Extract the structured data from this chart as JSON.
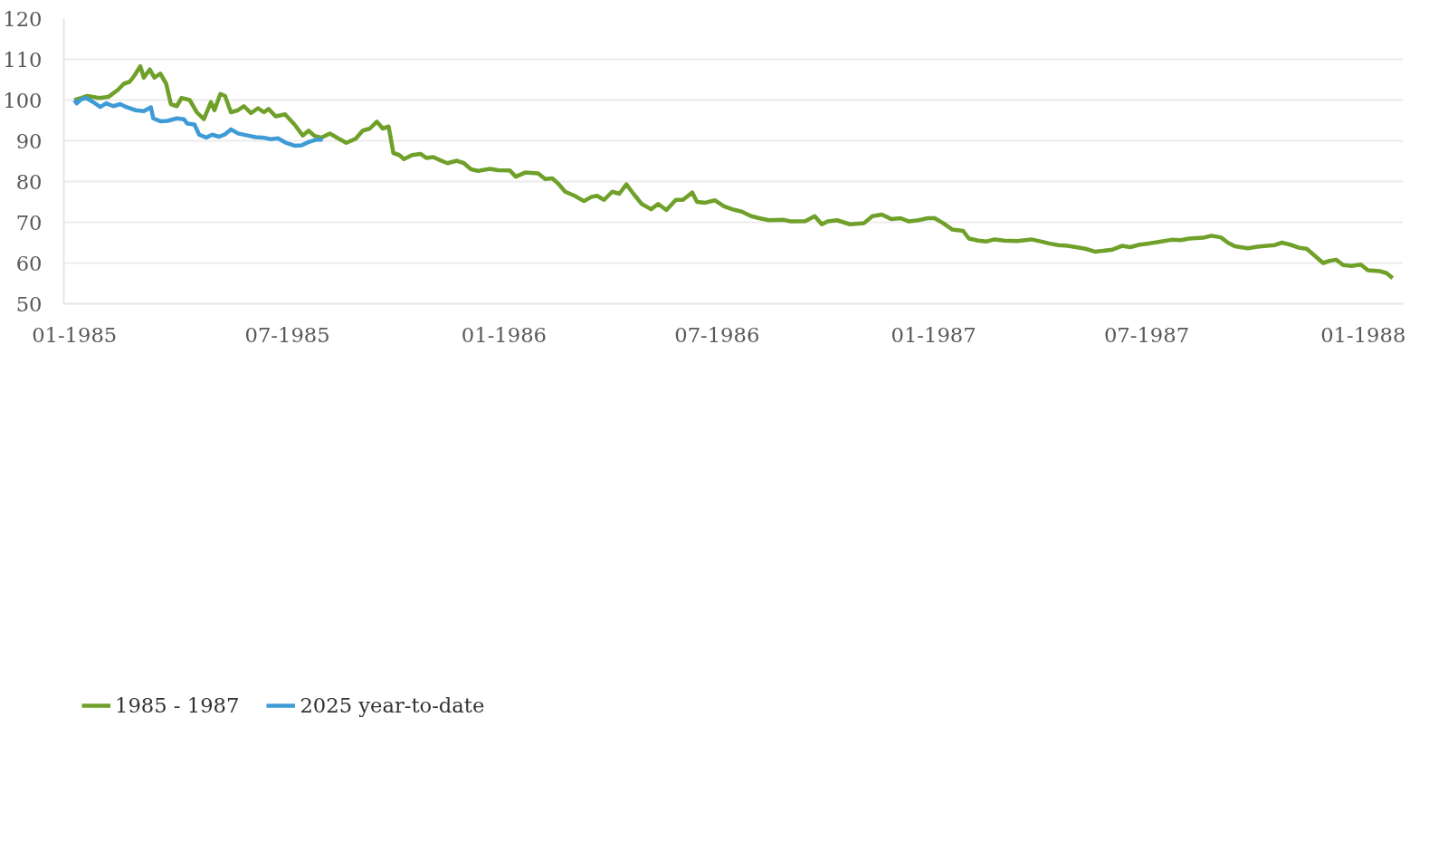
{
  "chart_data": {
    "type": "line",
    "xlim": [
      "1984-12-23",
      "1988-02-04"
    ],
    "ylim": [
      50,
      120
    ],
    "xticks": [
      {
        "value": "1985-01-01",
        "label": "01-1985"
      },
      {
        "value": "1985-07-01",
        "label": "07-1985"
      },
      {
        "value": "1986-01-01",
        "label": "01-1986"
      },
      {
        "value": "1986-07-01",
        "label": "07-1986"
      },
      {
        "value": "1987-01-01",
        "label": "01-1987"
      },
      {
        "value": "1987-07-01",
        "label": "07-1987"
      },
      {
        "value": "1988-01-01",
        "label": "01-1988"
      }
    ],
    "yticks": [
      50,
      60,
      70,
      80,
      90,
      100,
      110,
      120
    ],
    "grid": "y",
    "legend": "bottom left",
    "line_style": "solid",
    "marker": "none",
    "series": [
      {
        "name": "1985 - 1987",
        "color": "#6fa12a",
        "x": [
          "1985-01-01",
          "1985-01-07",
          "1985-01-12",
          "1985-01-22",
          "1985-01-30",
          "1985-02-07",
          "1985-02-12",
          "1985-02-17",
          "1985-02-21",
          "1985-02-26",
          "1985-03-01",
          "1985-03-06",
          "1985-03-10",
          "1985-03-15",
          "1985-03-20",
          "1985-03-24",
          "1985-03-29",
          "1985-04-02",
          "1985-04-09",
          "1985-04-15",
          "1985-04-21",
          "1985-04-27",
          "1985-04-30",
          "1985-05-05",
          "1985-05-09",
          "1985-05-14",
          "1985-05-20",
          "1985-05-25",
          "1985-05-31",
          "1985-06-06",
          "1985-06-11",
          "1985-06-15",
          "1985-06-21",
          "1985-06-29",
          "1985-07-07",
          "1985-07-14",
          "1985-07-19",
          "1985-07-24",
          "1985-07-30",
          "1985-08-06",
          "1985-08-13",
          "1985-08-20",
          "1985-08-28",
          "1985-09-03",
          "1985-09-09",
          "1985-09-15",
          "1985-09-20",
          "1985-09-25",
          "1985-09-29",
          "1985-10-04",
          "1985-10-08",
          "1985-10-15",
          "1985-10-22",
          "1985-10-27",
          "1985-11-02",
          "1985-11-08",
          "1985-11-14",
          "1985-11-22",
          "1985-11-28",
          "1985-12-04",
          "1985-12-10",
          "1985-12-20",
          "1985-12-27",
          "1986-01-06",
          "1986-01-11",
          "1986-01-19",
          "1986-01-30",
          "1986-02-05",
          "1986-02-11",
          "1986-02-16",
          "1986-02-22",
          "1986-03-02",
          "1986-03-10",
          "1986-03-16",
          "1986-03-21",
          "1986-03-27",
          "1986-04-03",
          "1986-04-09",
          "1986-04-15",
          "1986-04-21",
          "1986-04-28",
          "1986-05-06",
          "1986-05-12",
          "1986-05-19",
          "1986-05-27",
          "1986-06-02",
          "1986-06-10",
          "1986-06-14",
          "1986-06-21",
          "1986-06-29",
          "1986-07-07",
          "1986-07-14",
          "1986-07-22",
          "1986-07-30",
          "1986-08-06",
          "1986-08-14",
          "1986-08-26",
          "1986-09-02",
          "1986-09-14",
          "1986-09-22",
          "1986-09-28",
          "1986-10-03",
          "1986-10-11",
          "1986-10-22",
          "1986-11-03",
          "1986-11-10",
          "1986-11-18",
          "1986-11-26",
          "1986-12-04",
          "1986-12-11",
          "1986-12-19",
          "1986-12-27",
          "1987-01-02",
          "1987-01-09",
          "1987-01-17",
          "1987-01-26",
          "1987-01-31",
          "1987-02-08",
          "1987-02-15",
          "1987-02-22",
          "1987-03-02",
          "1987-03-13",
          "1987-03-25",
          "1987-04-02",
          "1987-04-09",
          "1987-04-17",
          "1987-04-25",
          "1987-05-02",
          "1987-05-10",
          "1987-05-18",
          "1987-05-25",
          "1987-06-02",
          "1987-06-10",
          "1987-06-17",
          "1987-06-25",
          "1987-07-03",
          "1987-07-10",
          "1987-07-22",
          "1987-07-30",
          "1987-08-06",
          "1987-08-18",
          "1987-08-25",
          "1987-09-02",
          "1987-09-08",
          "1987-09-14",
          "1987-09-25",
          "1987-10-03",
          "1987-10-11",
          "1987-10-18",
          "1987-10-24",
          "1987-10-31",
          "1987-11-08",
          "1987-11-14",
          "1987-11-22",
          "1987-11-28",
          "1987-12-03",
          "1987-12-09",
          "1987-12-15",
          "1987-12-22",
          "1987-12-30",
          "1988-01-05",
          "1988-01-15",
          "1988-01-21",
          "1988-01-26"
        ],
        "values": [
          100,
          100.5,
          101,
          100.5,
          100.8,
          102.5,
          104,
          104.5,
          106,
          108.3,
          105.5,
          107.5,
          105.5,
          106.5,
          104,
          99,
          98.5,
          100.5,
          100,
          97,
          95.3,
          99.5,
          97.5,
          101.5,
          101,
          97,
          97.5,
          98.5,
          96.8,
          98,
          97,
          97.8,
          96,
          96.5,
          94,
          91.3,
          92.5,
          91.2,
          90.8,
          91.8,
          90.6,
          89.5,
          90.5,
          92.5,
          93,
          94.7,
          93,
          93.5,
          87,
          86.5,
          85.5,
          86.5,
          86.8,
          85.8,
          86,
          85.2,
          84.5,
          85.1,
          84.5,
          83,
          82.6,
          83.1,
          82.8,
          82.7,
          81.2,
          82.2,
          82,
          80.6,
          80.8,
          79.5,
          77.5,
          76.5,
          75.2,
          76.2,
          76.5,
          75.5,
          77.5,
          77,
          79.3,
          77,
          74.5,
          73.2,
          74.5,
          73,
          75.5,
          75.5,
          77.3,
          75,
          74.8,
          75.4,
          73.9,
          73.2,
          72.6,
          71.5,
          71,
          70.5,
          70.6,
          70.2,
          70.3,
          71.5,
          69.5,
          70.2,
          70.5,
          69.5,
          69.8,
          71.5,
          71.9,
          70.8,
          71,
          70.2,
          70.5,
          71,
          71,
          69.8,
          68.2,
          67.9,
          66,
          65.5,
          65.3,
          65.8,
          65.5,
          65.4,
          65.8,
          65.3,
          64.8,
          64.4,
          64.2,
          63.9,
          63.5,
          62.8,
          63,
          63.3,
          64.2,
          63.9,
          64.5,
          64.8,
          65.1,
          65.7,
          65.6,
          66,
          66.2,
          66.7,
          66.3,
          65,
          64.1,
          63.6,
          64,
          64.2,
          64.4,
          65,
          64.5,
          63.7,
          63.5,
          61.5,
          60,
          60.5,
          60.8,
          59.5,
          59.3,
          59.6,
          58.2,
          58,
          57.5,
          56.3
        ]
      },
      {
        "name": "2025 year-to-date",
        "color": "#3e9bd6",
        "x": [
          "1985-01-01",
          "1985-01-03",
          "1985-01-07",
          "1985-01-11",
          "1985-01-17",
          "1985-01-23",
          "1985-01-28",
          "1985-02-03",
          "1985-02-09",
          "1985-02-14",
          "1985-02-22",
          "1985-03-01",
          "1985-03-07",
          "1985-03-09",
          "1985-03-15",
          "1985-03-21",
          "1985-03-29",
          "1985-04-04",
          "1985-04-07",
          "1985-04-13",
          "1985-04-17",
          "1985-04-23",
          "1985-04-28",
          "1985-05-04",
          "1985-05-09",
          "1985-05-14",
          "1985-05-20",
          "1985-05-28",
          "1985-06-04",
          "1985-06-10",
          "1985-06-17",
          "1985-06-23",
          "1985-06-29",
          "1985-07-07",
          "1985-07-13",
          "1985-07-19",
          "1985-07-26",
          "1985-07-31"
        ],
        "values": [
          100,
          99.2,
          100.2,
          100.5,
          99.5,
          98.3,
          99.2,
          98.5,
          99,
          98.3,
          97.5,
          97.3,
          98.2,
          95.5,
          94.8,
          94.9,
          95.5,
          95.3,
          94.2,
          94,
          91.5,
          90.8,
          91.5,
          91,
          91.6,
          92.8,
          91.8,
          91.3,
          90.9,
          90.8,
          90.4,
          90.6,
          89.6,
          88.8,
          88.9,
          89.7,
          90.3,
          90.3
        ]
      }
    ]
  }
}
